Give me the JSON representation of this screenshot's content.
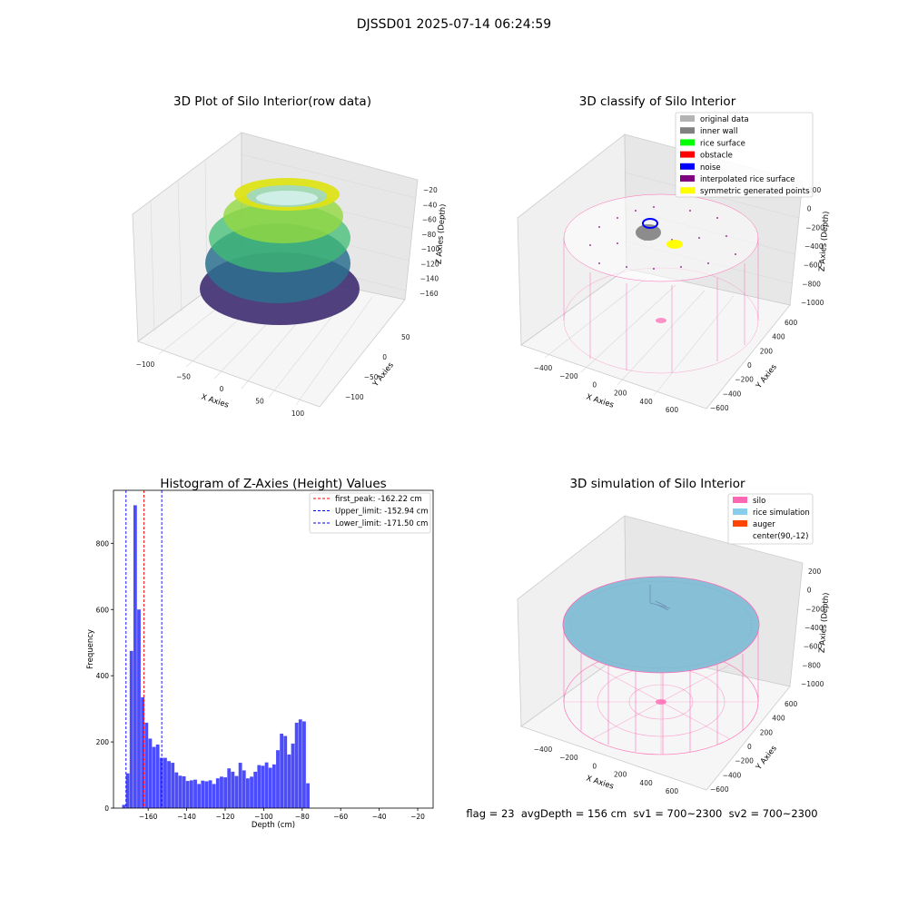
{
  "suptitle": "DJSSD01 2025-07-14 06:24:59",
  "footer": "flag = 23  avgDepth = 156 cm  sv1 = 700~2300  sv2 = 700~2300",
  "chart_data": [
    {
      "type": "scatter",
      "title": "3D Plot of Silo Interior(row data)",
      "xlabel": "X Axies",
      "ylabel": "Y Axies",
      "zlabel": "Z Axies (Depth)",
      "x_ticks": [
        "−100",
        "−50",
        "0",
        "50",
        "100"
      ],
      "y_ticks": [
        "−100",
        "−50",
        "0",
        "50"
      ],
      "z_ticks": [
        "−20",
        "−40",
        "−60",
        "−80",
        "−100",
        "−120",
        "−140",
        "−160"
      ],
      "xlim": [
        -110,
        110
      ],
      "zlim": [
        -175,
        -15
      ],
      "colormap": "viridis"
    },
    {
      "type": "scatter",
      "title": "3D classify of Silo Interior",
      "xlabel": "X Axies",
      "ylabel": "Y Axies",
      "zlabel": "Z Axies (Depth)",
      "x_ticks": [
        "−400",
        "−200",
        "0",
        "200",
        "400",
        "600"
      ],
      "y_ticks": [
        "−600",
        "−400",
        "−200",
        "0",
        "200",
        "400",
        "600"
      ],
      "z_ticks": [
        "200",
        "0",
        "−200",
        "−400",
        "−600",
        "−800",
        "−1000"
      ],
      "legend": [
        {
          "label": "original data",
          "color": "#b3b3b3"
        },
        {
          "label": "inner wall",
          "color": "#808080"
        },
        {
          "label": "rice surface",
          "color": "#00ff00"
        },
        {
          "label": "obstacle",
          "color": "#ff0000"
        },
        {
          "label": "noise",
          "color": "#0000ff"
        },
        {
          "label": "interpolated rice surface",
          "color": "#800080"
        },
        {
          "label": "symmetric generated points",
          "color": "#ffff00"
        }
      ],
      "legend_position": "top-right"
    },
    {
      "type": "bar",
      "title": "Histogram of Z-Axies (Height) Values",
      "xlabel": "Depth (cm)",
      "ylabel": "Frequency",
      "xlim": [
        -178,
        -12
      ],
      "ylim": [
        0,
        960
      ],
      "x_ticks": [
        -160,
        -140,
        -120,
        -100,
        -80,
        -60,
        -40,
        -20
      ],
      "y_ticks": [
        0,
        200,
        400,
        600,
        800
      ],
      "bin_width": 1.95,
      "bin_start": -173.5,
      "values": [
        10,
        105,
        475,
        915,
        600,
        335,
        258,
        210,
        185,
        192,
        152,
        152,
        142,
        137,
        108,
        98,
        96,
        82,
        84,
        86,
        73,
        83,
        81,
        84,
        73,
        90,
        95,
        93,
        120,
        110,
        97,
        137,
        114,
        90,
        95,
        110,
        130,
        128,
        138,
        122,
        132,
        175,
        225,
        218,
        162,
        195,
        258,
        268,
        262,
        75
      ],
      "bar_color": "#0000ff",
      "vlines": [
        {
          "value": -162.22,
          "label": "first_peak: -162.22 cm",
          "color": "#ff0000"
        },
        {
          "value": -152.94,
          "label": "Upper_limit: -152.94 cm",
          "color": "#0000ff"
        },
        {
          "value": -171.5,
          "label": "Lower_limit: -171.50 cm",
          "color": "#0000ff"
        }
      ],
      "legend_position": "top-right"
    },
    {
      "type": "area",
      "title": "3D simulation of Silo Interior",
      "xlabel": "X Axies",
      "ylabel": "Y Axies",
      "zlabel": "Z Axies (Depth)",
      "x_ticks": [
        "−400",
        "−200",
        "0",
        "200",
        "400",
        "600"
      ],
      "y_ticks": [
        "−600",
        "−400",
        "−200",
        "0",
        "200",
        "400",
        "600"
      ],
      "z_ticks": [
        "200",
        "0",
        "−200",
        "−400",
        "−600",
        "−800",
        "−1000"
      ],
      "legend": [
        {
          "label": "silo",
          "color": "#ff69b4"
        },
        {
          "label": "rice simulation",
          "color": "#87ceeb"
        },
        {
          "label": "auger",
          "color": "#ff4500"
        },
        {
          "label": "center(90,-12)",
          "color": "#ffffff"
        }
      ],
      "legend_position": "top-right"
    }
  ]
}
